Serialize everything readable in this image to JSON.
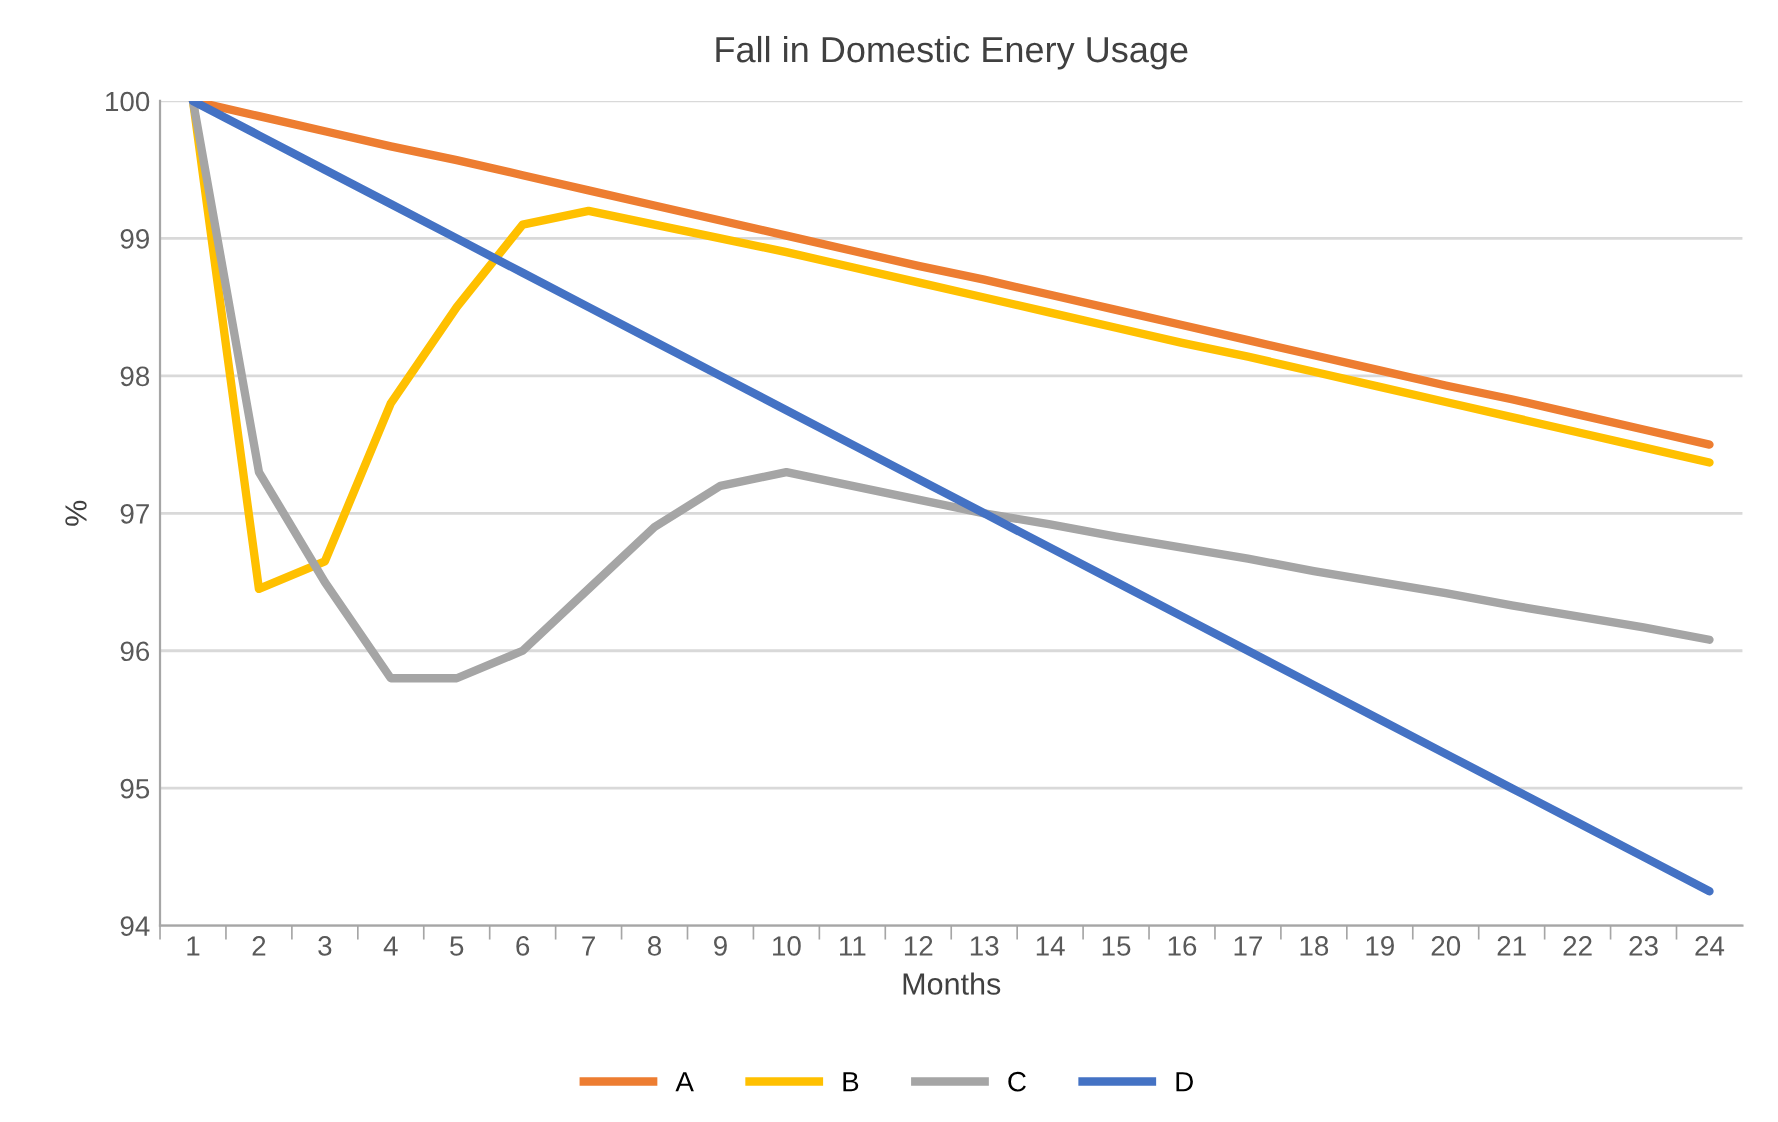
{
  "chart_data": {
    "type": "line",
    "title": "Fall in Domestic Enery Usage",
    "xlabel": "Months",
    "ylabel": "%",
    "categories": [
      "1",
      "2",
      "3",
      "4",
      "5",
      "6",
      "7",
      "8",
      "9",
      "10",
      "11",
      "12",
      "13",
      "14",
      "15",
      "16",
      "17",
      "18",
      "19",
      "20",
      "21",
      "22",
      "23",
      "24"
    ],
    "series": [
      {
        "name": "A",
        "color": "#ed7d31",
        "values": [
          100,
          99.89,
          99.78,
          99.67,
          99.57,
          99.46,
          99.35,
          99.24,
          99.13,
          99.02,
          98.91,
          98.8,
          98.7,
          98.59,
          98.48,
          98.37,
          98.26,
          98.15,
          98.04,
          97.93,
          97.83,
          97.72,
          97.61,
          97.5
        ]
      },
      {
        "name": "B",
        "color": "#ffc000",
        "values": [
          100,
          96.45,
          96.65,
          97.8,
          98.5,
          99.1,
          99.2,
          99.1,
          99.0,
          98.9,
          98.79,
          98.68,
          98.57,
          98.46,
          98.35,
          98.24,
          98.14,
          98.03,
          97.92,
          97.81,
          97.7,
          97.59,
          97.48,
          97.37
        ]
      },
      {
        "name": "C",
        "color": "#a5a5a5",
        "values": [
          100,
          97.3,
          96.5,
          95.8,
          95.8,
          96.0,
          96.45,
          96.9,
          97.2,
          97.3,
          97.2,
          97.1,
          97.0,
          96.92,
          96.83,
          96.75,
          96.67,
          96.58,
          96.5,
          96.42,
          96.33,
          96.25,
          96.17,
          96.08
        ]
      },
      {
        "name": "D",
        "color": "#4472c4",
        "values": [
          100,
          99.75,
          99.5,
          99.25,
          99.0,
          98.75,
          98.5,
          98.25,
          98.0,
          97.75,
          97.5,
          97.25,
          97.0,
          96.75,
          96.5,
          96.25,
          96.0,
          95.75,
          95.5,
          95.25,
          95.0,
          94.75,
          94.5,
          94.25
        ]
      }
    ],
    "ylim": [
      94,
      100
    ],
    "yticks": [
      94,
      95,
      96,
      97,
      98,
      99,
      100
    ],
    "grid": "y",
    "legend": "bottom",
    "marker": "none",
    "line_style": "solid"
  }
}
